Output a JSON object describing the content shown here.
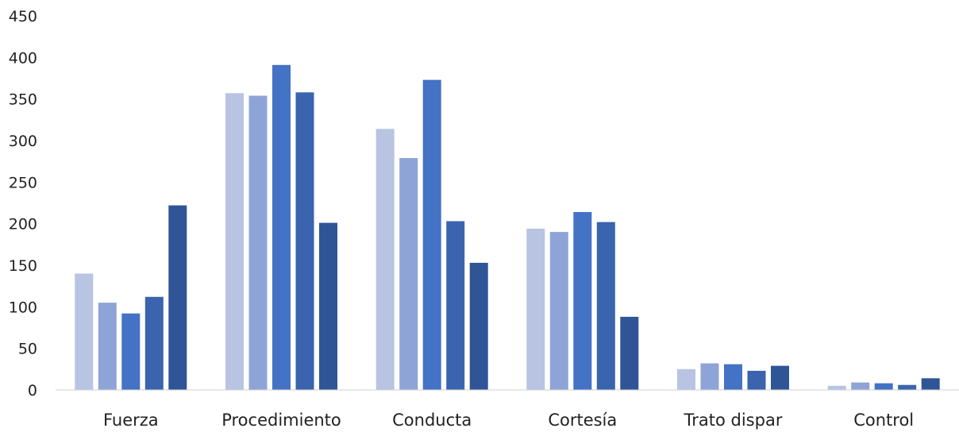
{
  "chart_data": {
    "type": "bar",
    "title": "",
    "xlabel": "",
    "ylabel": "",
    "categories": [
      "Fuerza",
      "Procedimiento",
      "Conducta",
      "Cortesía",
      "Trato dispar",
      "Control"
    ],
    "ylim": [
      0,
      450
    ],
    "yticks": [
      0,
      50,
      100,
      150,
      200,
      250,
      300,
      350,
      400,
      450
    ],
    "grid": false,
    "legend": "none",
    "series": [
      {
        "values": [
          140,
          357,
          314,
          194,
          25,
          5
        ],
        "color": "#b8c4e2"
      },
      {
        "values": [
          105,
          354,
          279,
          190,
          32,
          9
        ],
        "color": "#8fa4d6"
      },
      {
        "values": [
          92,
          391,
          373,
          214,
          31,
          8
        ],
        "color": "#4472c4"
      },
      {
        "values": [
          112,
          358,
          203,
          202,
          23,
          6
        ],
        "color": "#3a64ad"
      },
      {
        "values": [
          222,
          201,
          153,
          88,
          29,
          14
        ],
        "color": "#2f5597"
      }
    ]
  }
}
